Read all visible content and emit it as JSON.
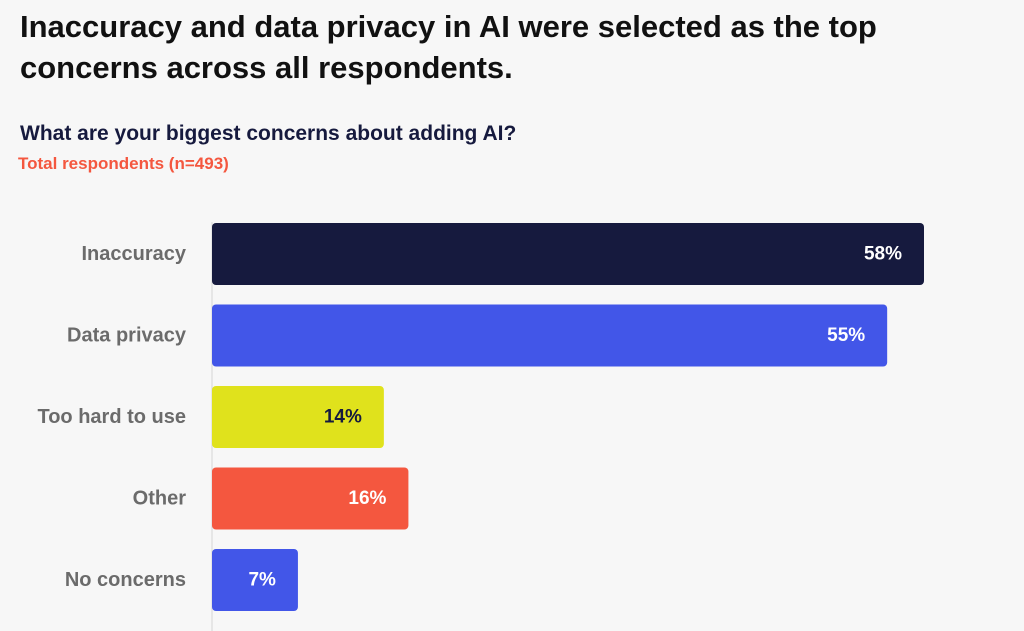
{
  "header": {
    "headline": "Inaccuracy and data privacy in AI were selected as the top concerns across all respondents.",
    "question": "What are your biggest concerns about adding AI?",
    "respondents": "Total respondents (n=493)"
  },
  "chart_data": {
    "type": "bar",
    "orientation": "horizontal",
    "title": "What are your biggest concerns about adding AI?",
    "subtitle": "Total respondents (n=493)",
    "categories": [
      "Inaccuracy",
      "Data privacy",
      "Too hard to use",
      "Other",
      "No concerns"
    ],
    "values": [
      58,
      55,
      14,
      16,
      7
    ],
    "value_labels": [
      "58%",
      "55%",
      "14%",
      "16%",
      "7%"
    ],
    "bar_colors": [
      "#161a3e",
      "#4256e8",
      "#e0e21c",
      "#f4573f",
      "#4256e8"
    ],
    "label_colors": [
      "#ffffff",
      "#ffffff",
      "#161a3e",
      "#ffffff",
      "#ffffff"
    ],
    "xlim": [
      0,
      58
    ],
    "xlabel": "",
    "ylabel": "",
    "grid": false
  }
}
